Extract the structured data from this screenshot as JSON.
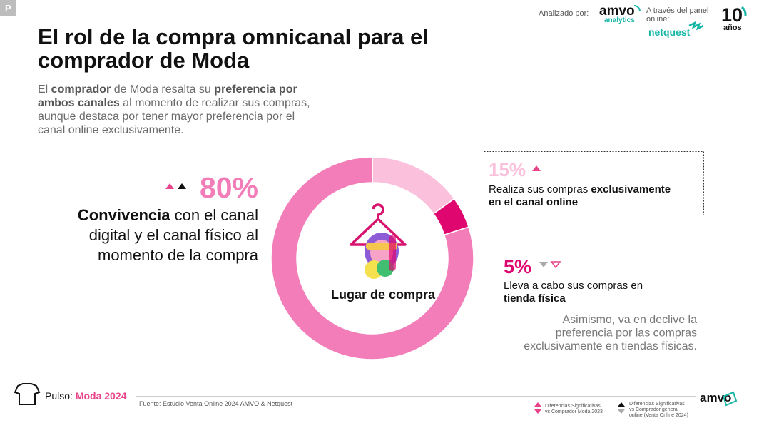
{
  "header": {
    "badge": "P",
    "title_lines": [
      "El rol de la compra omnicanal para el",
      "comprador de Moda"
    ],
    "analyzed_by": "Analizado por:",
    "brand": "amvo",
    "brand_sub": "analytics",
    "panel_lines": [
      "A través del panel",
      "online:"
    ],
    "panel_brand": "netquest",
    "anniversary": "10",
    "anniversary_sub": "años"
  },
  "intro": [
    [
      {
        "text": "El "
      },
      {
        "text": "comprador",
        "bold": true
      },
      {
        "text": " de Moda resalta su "
      },
      {
        "text": "preferencia por",
        "bold": true
      }
    ],
    [
      {
        "text": "ambos canales",
        "bold": true
      },
      {
        "text": " al momento de realizar sus compras,"
      }
    ],
    [
      {
        "text": "aunque destaca por tener mayor preferencia por el"
      }
    ],
    [
      {
        "text": "canal online exclusivamente."
      }
    ]
  ],
  "chart_data": {
    "type": "donut",
    "center_label": "Lugar de compra",
    "values": [
      15,
      5,
      80
    ],
    "value_labels": [
      "15%",
      "5%",
      "80%"
    ],
    "colors": [
      "#fbc1dc",
      "#e0066f",
      "#f27db8"
    ]
  },
  "callouts": [
    [
      [
        {
          "text": "Realiza sus compras "
        },
        {
          "text": "exclusivamente",
          "bold": true
        }
      ],
      [
        {
          "text": "en el canal online",
          "bold": true
        }
      ]
    ],
    [
      [
        {
          "text": "Lleva a cabo sus compras en"
        }
      ],
      [
        {
          "text": "tienda física",
          "bold": true
        }
      ]
    ],
    [
      [
        {
          "text": "Convivencia",
          "bold": true
        },
        {
          "text": " con el canal"
        }
      ],
      [
        {
          "text": "digital y el canal físico al"
        }
      ],
      [
        {
          "text": "momento de la compra"
        }
      ]
    ]
  ],
  "note": [
    "Asimismo, va en declive la",
    "preferencia por las compras",
    "exclusivamente en tiendas físicas."
  ],
  "footer": {
    "label": "Pulso:",
    "highlight": "Moda 2024",
    "source": "Fuente: Estudio Venta Online 2024 AMVO & Netquest",
    "logo": "amvo",
    "legend": [
      [
        "Diferencias Significativas",
        "vs Comprador Moda 2023"
      ],
      [
        "Diferencias Significativas",
        "vs Comprador general",
        "online (Venta Online 2024)"
      ]
    ]
  }
}
